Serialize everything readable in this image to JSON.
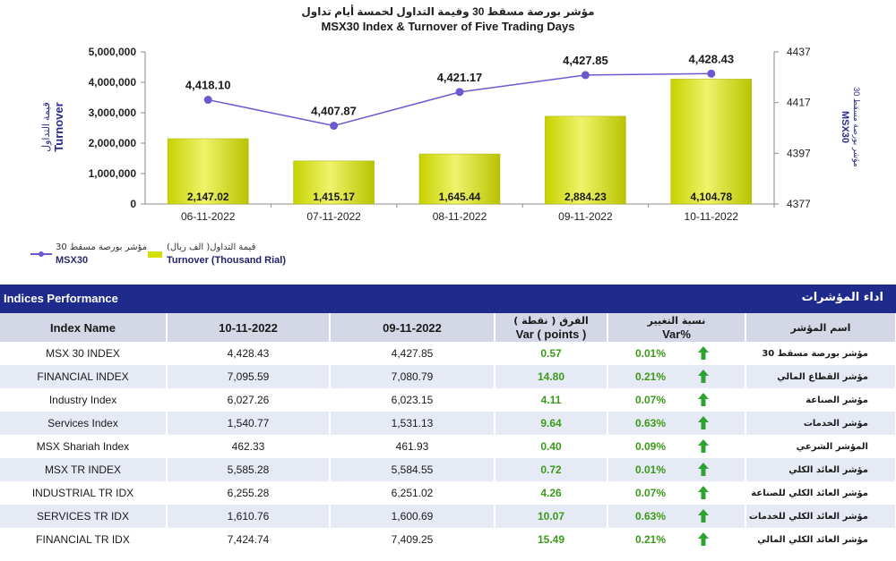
{
  "chart_data": {
    "type": "bar",
    "title_ar": "مؤشر بورصة مسقط 30 وقيمة التداول لخمسة أيام تداول",
    "title": "MSX30 Index & Turnover of Five Trading Days",
    "categories": [
      "06-11-2022",
      "07-11-2022",
      "08-11-2022",
      "09-11-2022",
      "10-11-2022"
    ],
    "series": [
      {
        "name": "Turnover (Thousand Rial)",
        "name_ar": "قيمة التداول( الف ريال)",
        "type": "bar",
        "axis": "left",
        "values": [
          2147.02,
          1415.17,
          1645.44,
          2884.23,
          4104.78
        ],
        "labels": [
          "2,147.02",
          "1,415.17",
          "1,645.44",
          "2,884.23",
          "4,104.78"
        ],
        "color": "#d4e000"
      },
      {
        "name": "MSX30",
        "name_ar": "مؤشر بورصة مسقط 30",
        "type": "line",
        "axis": "right",
        "values": [
          4418.1,
          4407.87,
          4421.17,
          4427.85,
          4428.43
        ],
        "labels": [
          "4,418.10",
          "4,407.87",
          "4,421.17",
          "4,427.85",
          "4,428.43"
        ],
        "color": "#6a5ad0"
      }
    ],
    "ylabel_left": "Turnover",
    "ylabel_left_ar": "قيمة التداول",
    "ylim_left": [
      0,
      5000000
    ],
    "yticks_left": [
      "0",
      "1,000,000",
      "2,000,000",
      "3,000,000",
      "4,000,000",
      "5,000,000"
    ],
    "ylabel_right": "MSX30",
    "ylabel_right_ar": "مؤشر بورصة مسقط 30",
    "ylim_right": [
      4377,
      4437
    ],
    "yticks_right": [
      "4377",
      "4397",
      "4417",
      "4437"
    ],
    "legend_position": "bottom-left"
  },
  "section": {
    "title": "Indices Performance",
    "title_ar": "اداء المؤشرات"
  },
  "table": {
    "headers": {
      "name": "Index Name",
      "date1": "10-11-2022",
      "date2": "09-11-2022",
      "var_ar": "الفرق ( نقطة )",
      "var": "Var ( points )",
      "pct_ar": "نسبة التغيير",
      "pct": "Var%",
      "name_ar": "اسم المؤشر"
    },
    "rows": [
      {
        "name": "MSX 30 INDEX",
        "v1": "4,428.43",
        "v2": "4,427.85",
        "var": "0.57",
        "pct": "0.01%",
        "ar": "مؤشر بورصة مسقط 30"
      },
      {
        "name": "FINANCIAL INDEX",
        "v1": "7,095.59",
        "v2": "7,080.79",
        "var": "14.80",
        "pct": "0.21%",
        "ar": "مؤشر القطاع المالي"
      },
      {
        "name": "Industry Index",
        "v1": "6,027.26",
        "v2": "6,023.15",
        "var": "4.11",
        "pct": "0.07%",
        "ar": "مؤشر الصناعة"
      },
      {
        "name": "Services Index",
        "v1": "1,540.77",
        "v2": "1,531.13",
        "var": "9.64",
        "pct": "0.63%",
        "ar": "مؤشر الخدمات"
      },
      {
        "name": "MSX Shariah Index",
        "v1": "462.33",
        "v2": "461.93",
        "var": "0.40",
        "pct": "0.09%",
        "ar": "المؤشر الشرعي"
      },
      {
        "name": "MSX TR INDEX",
        "v1": "5,585.28",
        "v2": "5,584.55",
        "var": "0.72",
        "pct": "0.01%",
        "ar": "مؤشر العائد الكلي"
      },
      {
        "name": "INDUSTRIAL TR IDX",
        "v1": "6,255.28",
        "v2": "6,251.02",
        "var": "4.26",
        "pct": "0.07%",
        "ar": "مؤشر العائد الكلي للصناعة"
      },
      {
        "name": "SERVICES TR IDX",
        "v1": "1,610.76",
        "v2": "1,600.69",
        "var": "10.07",
        "pct": "0.63%",
        "ar": "مؤشر العائد الكلي للخدمات"
      },
      {
        "name": "FINANCIAL TR IDX",
        "v1": "7,424.74",
        "v2": "7,409.25",
        "var": "15.49",
        "pct": "0.21%",
        "ar": "مؤشر العائد الكلي المالي"
      }
    ],
    "arrow_color": "#2fa32f"
  }
}
